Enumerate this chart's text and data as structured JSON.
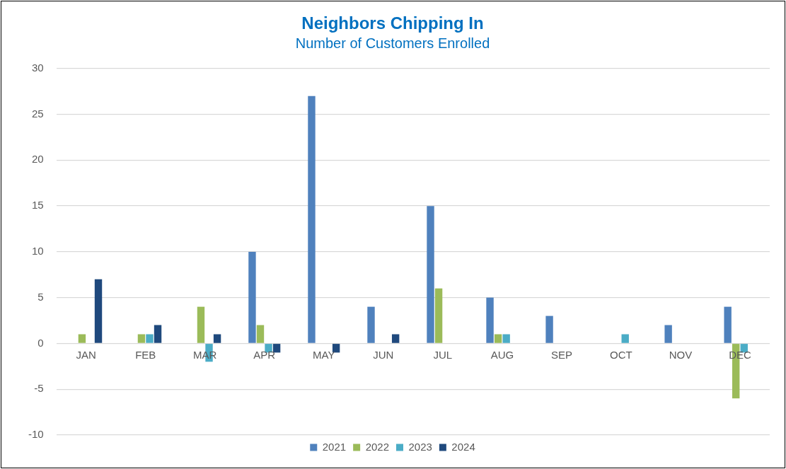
{
  "chart_data": {
    "type": "bar",
    "title": "Neighbors Chipping In",
    "subtitle": "Number of Customers Enrolled",
    "categories": [
      "JAN",
      "FEB",
      "MAR",
      "APR",
      "MAY",
      "JUN",
      "JUL",
      "AUG",
      "SEP",
      "OCT",
      "NOV",
      "DEC"
    ],
    "series": [
      {
        "name": "2021",
        "color": "#4f81bd",
        "values": [
          0,
          0,
          0,
          10,
          27,
          4,
          15,
          5,
          3,
          0,
          2,
          4
        ]
      },
      {
        "name": "2022",
        "color": "#9bbb59",
        "values": [
          1,
          1,
          4,
          2,
          0,
          0,
          6,
          1,
          0,
          0,
          0,
          -6
        ]
      },
      {
        "name": "2023",
        "color": "#4bacc6",
        "values": [
          0,
          1,
          -2,
          -1,
          0,
          0,
          0,
          1,
          0,
          1,
          0,
          -1
        ]
      },
      {
        "name": "2024",
        "color": "#1f497d",
        "values": [
          7,
          2,
          1,
          -1,
          -1,
          1,
          0,
          0,
          0,
          0,
          0,
          0
        ]
      }
    ],
    "ylim": [
      -10,
      30
    ],
    "yticks": [
      -10,
      -5,
      0,
      5,
      10,
      15,
      20,
      25,
      30
    ],
    "grid": "y",
    "legend": "bottom"
  }
}
